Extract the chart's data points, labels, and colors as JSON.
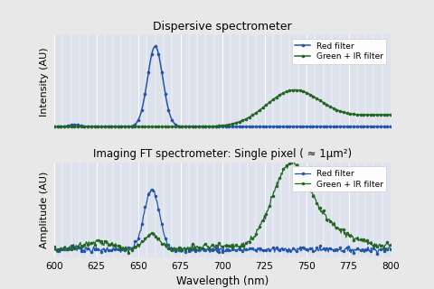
{
  "title_top": "Dispersive spectrometer",
  "title_bottom": "Imaging FT spectrometer: Single pixel ( ≈ 1μm²)",
  "xlabel": "Wavelength (nm)",
  "ylabel_top": "Intensity (AU)",
  "ylabel_bottom": "Amplitude (AU)",
  "xmin": 600,
  "xmax": 800,
  "legend_labels": [
    "Red filter",
    "Green + IR filter"
  ],
  "blue_color": "#2255aa",
  "green_color": "#226622",
  "bg_color": "#dde2ec",
  "grid_color": "#ffffff",
  "fig_bg": "#e8e8e8"
}
